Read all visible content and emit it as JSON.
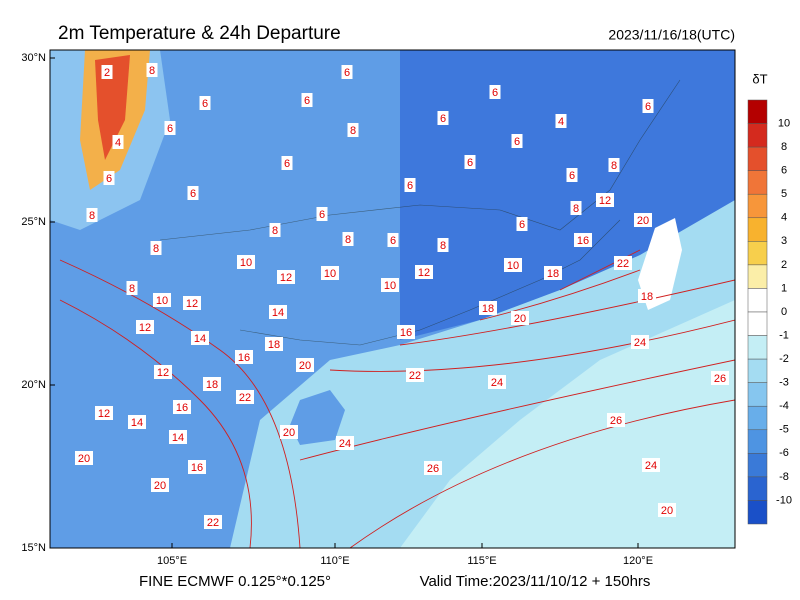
{
  "header": {
    "title": "2m Temperature & 24h Departure",
    "timestamp": "2023/11/16/18(UTC)"
  },
  "axes": {
    "x_labels": [
      "105°E",
      "110°E",
      "115°E",
      "120°E"
    ],
    "y_labels": [
      "30°N",
      "25°N",
      "20°N",
      "15°N"
    ]
  },
  "colorbar": {
    "title": "δT",
    "labels": [
      "10",
      "8",
      "6",
      "5",
      "4",
      "3",
      "2",
      "1",
      "0",
      "-1",
      "-2",
      "-3",
      "-4",
      "-5",
      "-6",
      "-8",
      "-10"
    ],
    "colors": [
      "#b40000",
      "#d42a1e",
      "#e4502c",
      "#f07538",
      "#f7963a",
      "#f8b22e",
      "#f7cf4c",
      "#fbeea8",
      "#ffffff",
      "#ffffff",
      "#c4eef5",
      "#a4dcf2",
      "#86c6ef",
      "#68aeea",
      "#4e94e2",
      "#3a7ad8",
      "#2a64d0",
      "#1a50c8"
    ]
  },
  "contour_labels": [
    "8",
    "2",
    "6",
    "6",
    "6",
    "6",
    "6",
    "6",
    "4",
    "8",
    "6",
    "4",
    "6",
    "6",
    "6",
    "6",
    "6",
    "6",
    "6",
    "8",
    "8",
    "12",
    "8",
    "6",
    "8",
    "6",
    "8",
    "6",
    "8",
    "16",
    "20",
    "8",
    "10",
    "10",
    "12",
    "22",
    "10",
    "12",
    "8",
    "10",
    "18",
    "10",
    "12",
    "14",
    "18",
    "12",
    "14",
    "16",
    "18",
    "20",
    "18",
    "16",
    "24",
    "20",
    "12",
    "22",
    "24",
    "26",
    "18",
    "22",
    "16",
    "12",
    "14",
    "26",
    "20",
    "14",
    "24",
    "24",
    "20",
    "16",
    "26",
    "20",
    "20",
    "22"
  ],
  "footer": {
    "left": "FINE ECMWF 0.125°*0.125°",
    "right": "Valid Time:2023/11/10/12 + 150hrs"
  }
}
